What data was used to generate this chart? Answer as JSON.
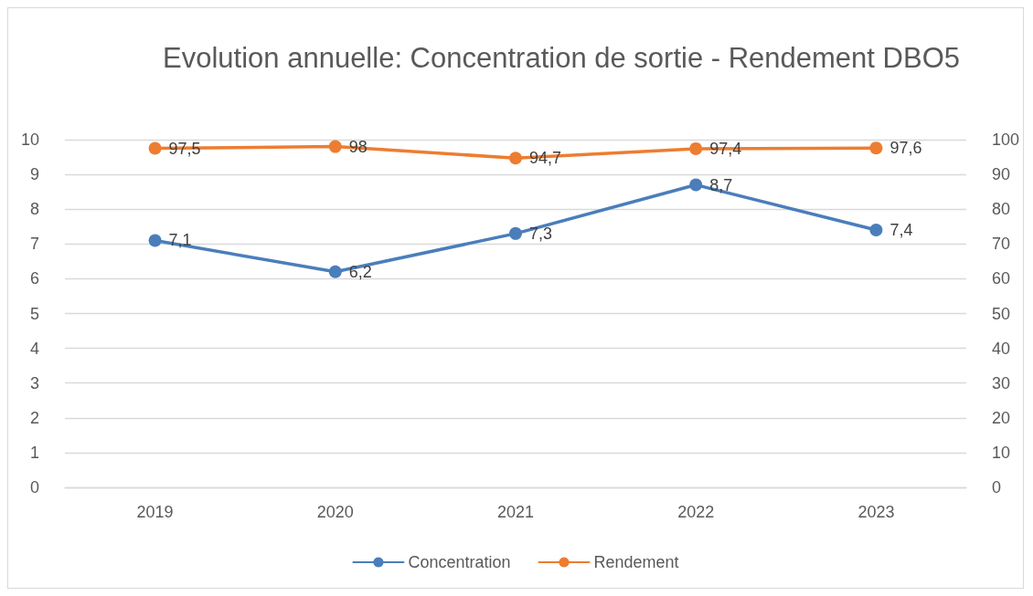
{
  "chart_data": {
    "type": "line",
    "title": "Evolution annuelle: Concentration de sortie - Rendement DBO5",
    "categories": [
      "2019",
      "2020",
      "2021",
      "2022",
      "2023"
    ],
    "series": [
      {
        "name": "Concentration",
        "color": "#4a7ebb",
        "values": [
          7.1,
          6.2,
          7.3,
          8.7,
          7.4
        ],
        "value_labels": [
          "7,1",
          "6,2",
          "7,3",
          "8,7",
          "7,4"
        ]
      },
      {
        "name": "Rendement",
        "color": "#ed7d31",
        "axis": "y2",
        "values": [
          97.5,
          98,
          94.7,
          97.4,
          97.6
        ],
        "value_labels": [
          "97,5",
          "98",
          "94,7",
          "97,4",
          "97,6"
        ]
      }
    ],
    "ylim": [
      0,
      10
    ],
    "yticks": [
      0,
      1,
      2,
      3,
      4,
      5,
      6,
      7,
      8,
      9,
      10
    ],
    "y2lim": [
      0,
      100
    ],
    "y2ticks": [
      0,
      10,
      20,
      30,
      40,
      50,
      60,
      70,
      80,
      90,
      100
    ],
    "grid": "y",
    "legend": "bottom",
    "marker": "circle",
    "line_style": "solid"
  }
}
